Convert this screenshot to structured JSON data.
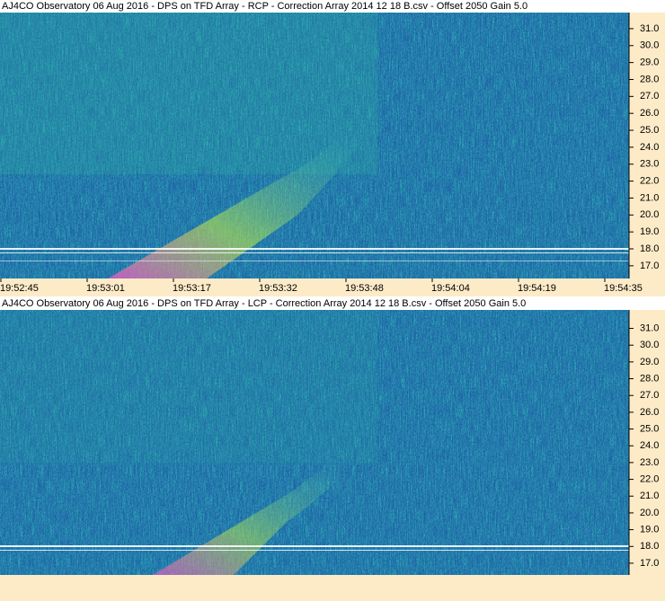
{
  "chart_data": [
    {
      "type": "spectrogram",
      "title": "AJ4CO Observatory 06 Aug 2016  -  DPS on TFD Array  -  RCP  -  Correction Array 2014 12 18 B.csv  -  Offset 2050  Gain 5.0",
      "ylim": [
        16.25,
        31.95
      ],
      "yticks": [
        {
          "value": 17,
          "label": "17.0"
        },
        {
          "value": 18,
          "label": "18.0"
        },
        {
          "value": 19,
          "label": "19.0"
        },
        {
          "value": 20,
          "label": "20.0"
        },
        {
          "value": 21,
          "label": "21.0"
        },
        {
          "value": 22,
          "label": "22.0"
        },
        {
          "value": 23,
          "label": "23.0"
        },
        {
          "value": 24,
          "label": "24.0"
        },
        {
          "value": 25,
          "label": "25.0"
        },
        {
          "value": 26,
          "label": "26.0"
        },
        {
          "value": 27,
          "label": "27.0"
        },
        {
          "value": 28,
          "label": "28.0"
        },
        {
          "value": 29,
          "label": "29.0"
        },
        {
          "value": 30,
          "label": "30.0"
        },
        {
          "value": 31,
          "label": "31.0"
        }
      ],
      "x": [
        "19:52:45",
        "19:53:01",
        "19:53:17",
        "19:53:32",
        "19:53:48",
        "19:54:04",
        "19:54:19",
        "19:54:35"
      ]
    },
    {
      "type": "spectrogram",
      "title": "AJ4CO Observatory 06 Aug 2016  -  DPS on TFD Array  -  LCP  -  Correction Array 2014 12 18 B.csv  -  Offset 2050  Gain 5.0",
      "ylim": [
        16.3,
        32.1
      ],
      "yticks": [
        {
          "value": 17,
          "label": "17.0"
        },
        {
          "value": 18,
          "label": "18.0"
        },
        {
          "value": 19,
          "label": "19.0"
        },
        {
          "value": 20,
          "label": "20.0"
        },
        {
          "value": 21,
          "label": "21.0"
        },
        {
          "value": 22,
          "label": "22.0"
        },
        {
          "value": 23,
          "label": "23.0"
        },
        {
          "value": 24,
          "label": "24.0"
        },
        {
          "value": 25,
          "label": "25.0"
        },
        {
          "value": 26,
          "label": "26.0"
        },
        {
          "value": 27,
          "label": "27.0"
        },
        {
          "value": 28,
          "label": "28.0"
        },
        {
          "value": 29,
          "label": "29.0"
        },
        {
          "value": 30,
          "label": "30.0"
        },
        {
          "value": 31,
          "label": "31.0"
        }
      ]
    }
  ]
}
